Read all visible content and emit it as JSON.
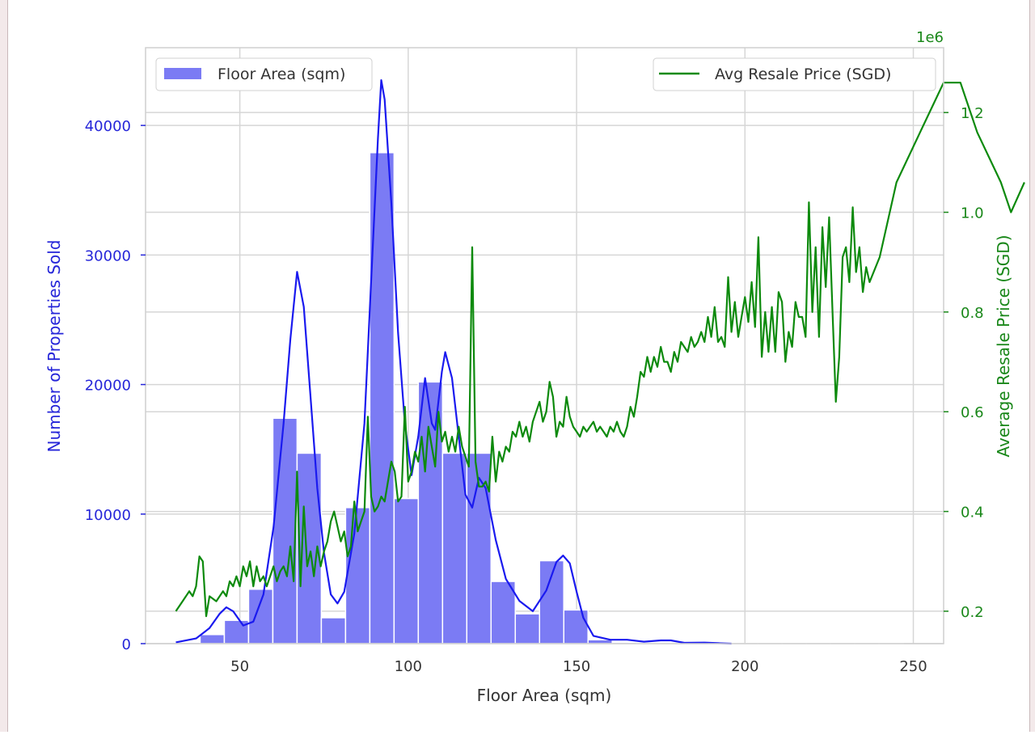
{
  "chart_data": {
    "type": "bar",
    "xlabel": "Floor Area (sqm)",
    "ylabel": "Number of Properties Sold",
    "y2label": "Average Resale Price (SGD)",
    "y2_offset_text": "1e6",
    "xlim": [
      22,
      259
    ],
    "ylim": [
      0,
      46000
    ],
    "y2lim": [
      0.135,
      1.33
    ],
    "xticks": [
      50,
      100,
      150,
      200,
      250
    ],
    "yticks": [
      0,
      10000,
      20000,
      30000,
      40000
    ],
    "y2ticks": [
      0.2,
      0.4,
      0.6,
      0.8,
      1.0,
      1.2
    ],
    "y2tick_labels": [
      "0.2",
      "0.4",
      "0.6",
      "0.8",
      "1.0",
      "1.2"
    ],
    "grid": true,
    "legend_left": {
      "position": "top-left",
      "label": "Floor Area (sqm)"
    },
    "legend_right": {
      "position": "top-right",
      "label": "Avg Resale Price (SGD)"
    },
    "colors": {
      "hist": "#7b7bf4",
      "kde": "#1a1aef",
      "price": "#0d8a0d",
      "left_axis": "#2626d9",
      "right_axis": "#198719"
    },
    "histogram": {
      "series_name": "Floor Area (sqm)",
      "bin_edges": [
        31,
        38.2,
        45.4,
        52.6,
        59.8,
        67,
        74.2,
        81.4,
        88.6,
        95.8,
        103,
        110.2,
        117.4,
        124.6,
        131.8,
        139,
        146.2,
        153.4,
        160.6,
        167.8,
        175,
        182.2,
        189.4,
        196.6,
        203.8,
        211,
        218.2,
        225.4,
        232.6,
        239.8,
        247
      ],
      "counts": [
        100,
        700,
        1800,
        4200,
        17400,
        14700,
        2000,
        10500,
        37900,
        11200,
        20200,
        14700,
        14700,
        4800,
        2300,
        6400,
        2600,
        300,
        100,
        50,
        40,
        10,
        10,
        5,
        5,
        5,
        3,
        3,
        3,
        3
      ]
    },
    "kde_points": [
      [
        31,
        100
      ],
      [
        37,
        400
      ],
      [
        41,
        1200
      ],
      [
        44,
        2300
      ],
      [
        46,
        2800
      ],
      [
        48,
        2500
      ],
      [
        51,
        1400
      ],
      [
        54,
        1700
      ],
      [
        57,
        3800
      ],
      [
        60,
        9000
      ],
      [
        63,
        17000
      ],
      [
        65,
        23500
      ],
      [
        67,
        28700
      ],
      [
        69,
        26000
      ],
      [
        71,
        19000
      ],
      [
        73,
        12000
      ],
      [
        75,
        7000
      ],
      [
        77,
        3800
      ],
      [
        79,
        3100
      ],
      [
        81,
        4000
      ],
      [
        84,
        8500
      ],
      [
        87,
        17000
      ],
      [
        89,
        28000
      ],
      [
        91,
        39000
      ],
      [
        92,
        43500
      ],
      [
        93,
        42000
      ],
      [
        95,
        34000
      ],
      [
        97,
        24000
      ],
      [
        99,
        17000
      ],
      [
        101,
        13000
      ],
      [
        103,
        16000
      ],
      [
        105,
        20500
      ],
      [
        107,
        17000
      ],
      [
        108,
        16500
      ],
      [
        110,
        21000
      ],
      [
        111,
        22500
      ],
      [
        113,
        20500
      ],
      [
        115,
        16000
      ],
      [
        117,
        11500
      ],
      [
        119,
        10500
      ],
      [
        121,
        12800
      ],
      [
        123,
        12000
      ],
      [
        126,
        8000
      ],
      [
        129,
        5000
      ],
      [
        133,
        3300
      ],
      [
        137,
        2500
      ],
      [
        141,
        4100
      ],
      [
        144,
        6300
      ],
      [
        146,
        6800
      ],
      [
        148,
        6200
      ],
      [
        150,
        4000
      ],
      [
        152,
        2000
      ],
      [
        155,
        600
      ],
      [
        160,
        300
      ],
      [
        165,
        300
      ],
      [
        170,
        150
      ],
      [
        175,
        250
      ],
      [
        178,
        250
      ],
      [
        182,
        60
      ],
      [
        188,
        80
      ],
      [
        192,
        40
      ],
      [
        196,
        0
      ]
    ],
    "price_series": {
      "name": "Avg Resale Price (SGD)",
      "points": [
        [
          31,
          0.2
        ],
        [
          33,
          0.22
        ],
        [
          35,
          0.24
        ],
        [
          36,
          0.23
        ],
        [
          37,
          0.25
        ],
        [
          38,
          0.31
        ],
        [
          39,
          0.3
        ],
        [
          40,
          0.19
        ],
        [
          41,
          0.23
        ],
        [
          43,
          0.22
        ],
        [
          45,
          0.24
        ],
        [
          46,
          0.23
        ],
        [
          47,
          0.26
        ],
        [
          48,
          0.25
        ],
        [
          49,
          0.27
        ],
        [
          50,
          0.25
        ],
        [
          51,
          0.29
        ],
        [
          52,
          0.27
        ],
        [
          53,
          0.3
        ],
        [
          54,
          0.25
        ],
        [
          55,
          0.29
        ],
        [
          56,
          0.26
        ],
        [
          57,
          0.27
        ],
        [
          58,
          0.25
        ],
        [
          59,
          0.27
        ],
        [
          60,
          0.29
        ],
        [
          61,
          0.26
        ],
        [
          62,
          0.28
        ],
        [
          63,
          0.29
        ],
        [
          64,
          0.27
        ],
        [
          65,
          0.33
        ],
        [
          66,
          0.26
        ],
        [
          67,
          0.48
        ],
        [
          68,
          0.25
        ],
        [
          69,
          0.41
        ],
        [
          70,
          0.29
        ],
        [
          71,
          0.32
        ],
        [
          72,
          0.27
        ],
        [
          73,
          0.33
        ],
        [
          74,
          0.29
        ],
        [
          75,
          0.32
        ],
        [
          76,
          0.34
        ],
        [
          77,
          0.38
        ],
        [
          78,
          0.4
        ],
        [
          79,
          0.37
        ],
        [
          80,
          0.34
        ],
        [
          81,
          0.36
        ],
        [
          82,
          0.31
        ],
        [
          83,
          0.33
        ],
        [
          84,
          0.42
        ],
        [
          85,
          0.36
        ],
        [
          86,
          0.38
        ],
        [
          87,
          0.4
        ],
        [
          88,
          0.59
        ],
        [
          89,
          0.43
        ],
        [
          90,
          0.4
        ],
        [
          91,
          0.41
        ],
        [
          92,
          0.43
        ],
        [
          93,
          0.42
        ],
        [
          94,
          0.46
        ],
        [
          95,
          0.5
        ],
        [
          96,
          0.48
        ],
        [
          97,
          0.42
        ],
        [
          98,
          0.43
        ],
        [
          99,
          0.61
        ],
        [
          100,
          0.46
        ],
        [
          101,
          0.48
        ],
        [
          102,
          0.52
        ],
        [
          103,
          0.5
        ],
        [
          104,
          0.55
        ],
        [
          105,
          0.48
        ],
        [
          106,
          0.57
        ],
        [
          107,
          0.53
        ],
        [
          108,
          0.49
        ],
        [
          109,
          0.6
        ],
        [
          110,
          0.54
        ],
        [
          111,
          0.56
        ],
        [
          112,
          0.52
        ],
        [
          113,
          0.55
        ],
        [
          114,
          0.52
        ],
        [
          115,
          0.57
        ],
        [
          116,
          0.53
        ],
        [
          117,
          0.51
        ],
        [
          118,
          0.49
        ],
        [
          119,
          0.93
        ],
        [
          120,
          0.5
        ],
        [
          121,
          0.45
        ],
        [
          122,
          0.45
        ],
        [
          123,
          0.46
        ],
        [
          124,
          0.44
        ],
        [
          125,
          0.55
        ],
        [
          126,
          0.46
        ],
        [
          127,
          0.52
        ],
        [
          128,
          0.5
        ],
        [
          129,
          0.53
        ],
        [
          130,
          0.52
        ],
        [
          131,
          0.56
        ],
        [
          132,
          0.55
        ],
        [
          133,
          0.58
        ],
        [
          134,
          0.55
        ],
        [
          135,
          0.57
        ],
        [
          136,
          0.54
        ],
        [
          137,
          0.58
        ],
        [
          138,
          0.6
        ],
        [
          139,
          0.62
        ],
        [
          140,
          0.58
        ],
        [
          141,
          0.6
        ],
        [
          142,
          0.66
        ],
        [
          143,
          0.63
        ],
        [
          144,
          0.55
        ],
        [
          145,
          0.58
        ],
        [
          146,
          0.57
        ],
        [
          147,
          0.63
        ],
        [
          148,
          0.59
        ],
        [
          149,
          0.57
        ],
        [
          150,
          0.56
        ],
        [
          151,
          0.55
        ],
        [
          152,
          0.57
        ],
        [
          153,
          0.56
        ],
        [
          154,
          0.57
        ],
        [
          155,
          0.58
        ],
        [
          156,
          0.56
        ],
        [
          157,
          0.57
        ],
        [
          158,
          0.56
        ],
        [
          159,
          0.55
        ],
        [
          160,
          0.57
        ],
        [
          161,
          0.56
        ],
        [
          162,
          0.58
        ],
        [
          163,
          0.56
        ],
        [
          164,
          0.55
        ],
        [
          165,
          0.57
        ],
        [
          166,
          0.61
        ],
        [
          167,
          0.59
        ],
        [
          168,
          0.63
        ],
        [
          169,
          0.68
        ],
        [
          170,
          0.67
        ],
        [
          171,
          0.71
        ],
        [
          172,
          0.68
        ],
        [
          173,
          0.71
        ],
        [
          174,
          0.69
        ],
        [
          175,
          0.73
        ],
        [
          176,
          0.7
        ],
        [
          177,
          0.7
        ],
        [
          178,
          0.68
        ],
        [
          179,
          0.72
        ],
        [
          180,
          0.7
        ],
        [
          181,
          0.74
        ],
        [
          182,
          0.73
        ],
        [
          183,
          0.72
        ],
        [
          184,
          0.75
        ],
        [
          185,
          0.73
        ],
        [
          186,
          0.74
        ],
        [
          187,
          0.76
        ],
        [
          188,
          0.74
        ],
        [
          189,
          0.79
        ],
        [
          190,
          0.75
        ],
        [
          191,
          0.81
        ],
        [
          192,
          0.74
        ],
        [
          193,
          0.75
        ],
        [
          194,
          0.73
        ],
        [
          195,
          0.87
        ],
        [
          196,
          0.76
        ],
        [
          197,
          0.82
        ],
        [
          198,
          0.75
        ],
        [
          199,
          0.79
        ],
        [
          200,
          0.83
        ],
        [
          201,
          0.78
        ],
        [
          202,
          0.86
        ],
        [
          203,
          0.77
        ],
        [
          204,
          0.95
        ],
        [
          205,
          0.71
        ],
        [
          206,
          0.8
        ],
        [
          207,
          0.72
        ],
        [
          208,
          0.81
        ],
        [
          209,
          0.72
        ],
        [
          210,
          0.84
        ],
        [
          211,
          0.82
        ],
        [
          212,
          0.7
        ],
        [
          213,
          0.76
        ],
        [
          214,
          0.73
        ],
        [
          215,
          0.82
        ],
        [
          216,
          0.79
        ],
        [
          217,
          0.79
        ],
        [
          218,
          0.75
        ],
        [
          219,
          1.02
        ],
        [
          220,
          0.8
        ],
        [
          221,
          0.93
        ],
        [
          222,
          0.75
        ],
        [
          223,
          0.97
        ],
        [
          224,
          0.85
        ],
        [
          225,
          0.99
        ],
        [
          226,
          0.8
        ],
        [
          227,
          0.62
        ],
        [
          228,
          0.71
        ],
        [
          229,
          0.91
        ],
        [
          230,
          0.93
        ],
        [
          231,
          0.86
        ],
        [
          232,
          1.01
        ],
        [
          233,
          0.88
        ],
        [
          234,
          0.93
        ],
        [
          235,
          0.84
        ],
        [
          236,
          0.89
        ],
        [
          237,
          0.86
        ],
        [
          240,
          0.91
        ],
        [
          245,
          1.06
        ],
        [
          252,
          1.16
        ],
        [
          259,
          1.26
        ],
        [
          264,
          1.26
        ],
        [
          269,
          1.16
        ],
        [
          276,
          1.06
        ],
        [
          279,
          1.0
        ],
        [
          283,
          1.06
        ]
      ]
    }
  }
}
